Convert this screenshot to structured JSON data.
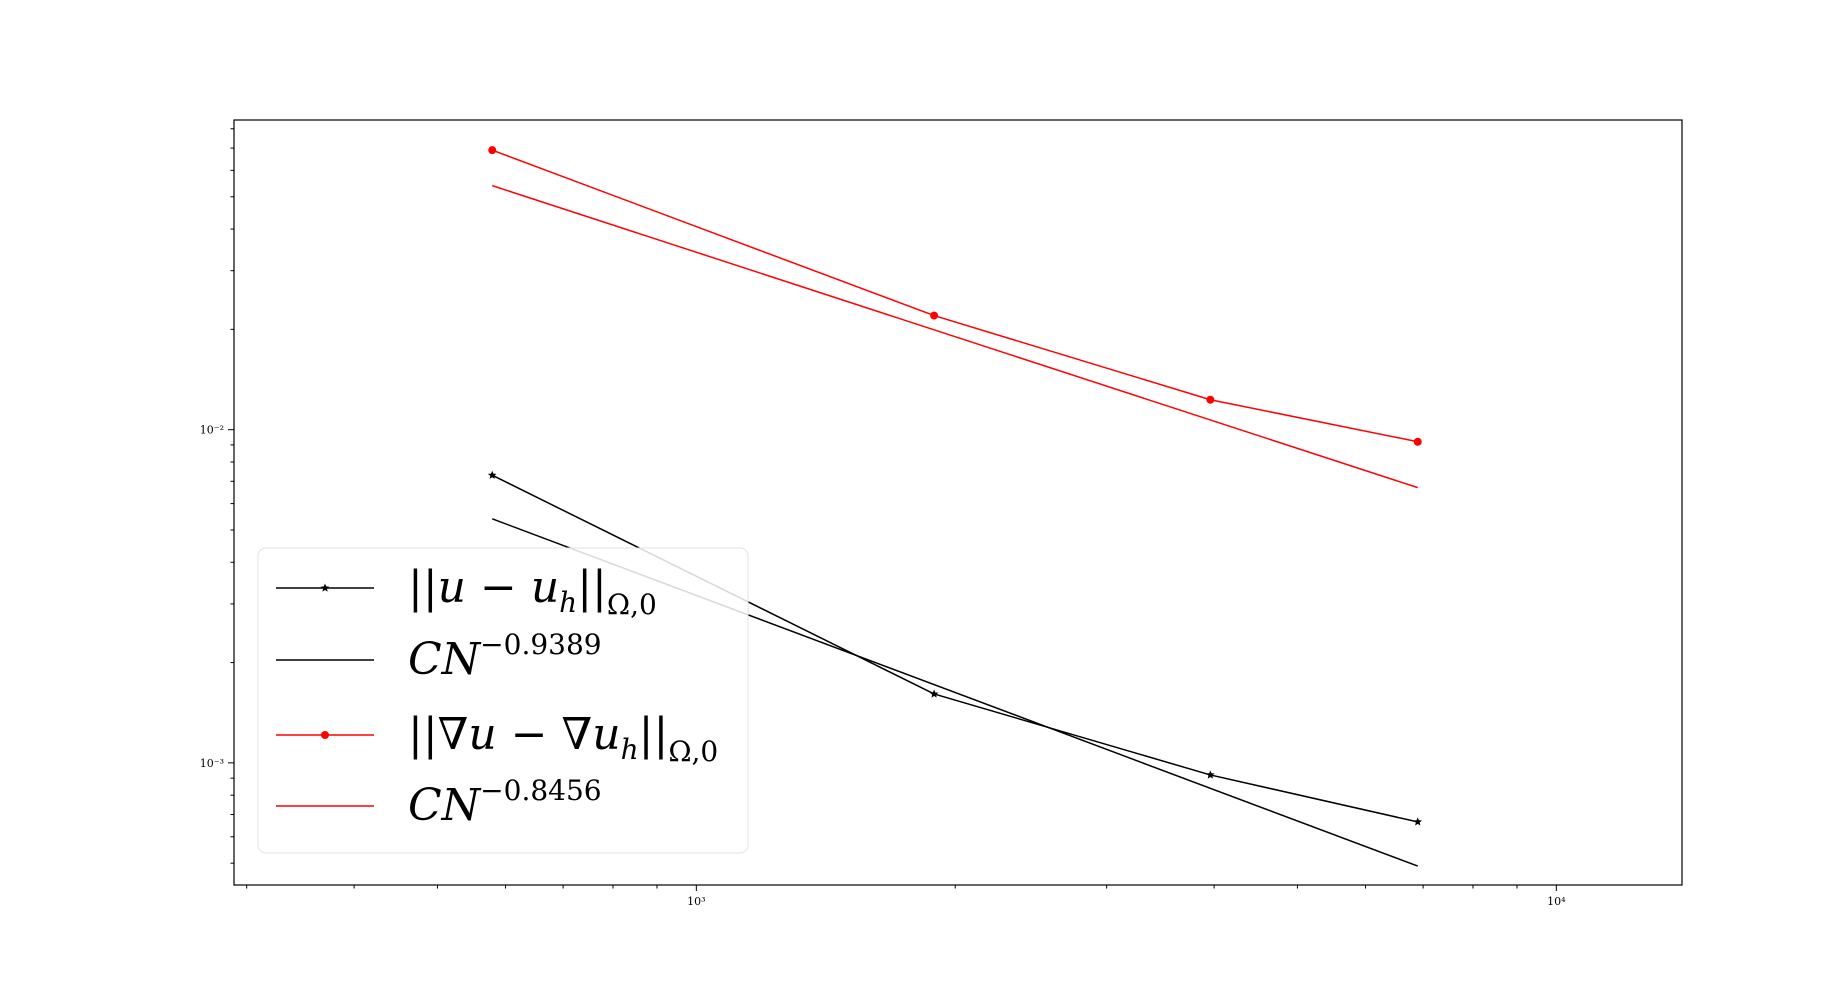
{
  "chart_data": {
    "type": "line",
    "xscale": "log",
    "yscale": "log",
    "xlim": [
      290,
      14000
    ],
    "ylim": [
      0.00043,
      0.085
    ],
    "xticks": [
      {
        "value": 1000,
        "label": "10³"
      },
      {
        "value": 10000,
        "label": "10⁴"
      }
    ],
    "yticks": [
      {
        "value": 0.01,
        "label": "10⁻²"
      },
      {
        "value": 0.001,
        "label": "10⁻³"
      }
    ],
    "grid": false,
    "legend_position": "lower-left",
    "series": [
      {
        "name": "||u − u_h||_{Ω,0}",
        "legend_main": "||u − u",
        "legend_sub": "h",
        "legend_tail": "||",
        "legend_tail_sub": "Ω,0",
        "color": "#000000",
        "marker": "star",
        "x": [
          579,
          1890,
          3960,
          6900
        ],
        "y": [
          0.0073,
          0.00161,
          0.00092,
          0.000665
        ]
      },
      {
        "name": "CN^{-0.9389}",
        "legend_main": "CN",
        "legend_sup": "−0.9389",
        "color": "#000000",
        "marker": "none",
        "x": [
          579,
          6900
        ],
        "y": [
          0.0054,
          0.00049
        ]
      },
      {
        "name": "||∇u − ∇u_h||_{Ω,0}",
        "legend_main": "||∇u − ∇u",
        "legend_sub": "h",
        "legend_tail": "||",
        "legend_tail_sub": "Ω,0",
        "color": "#ff0000",
        "marker": "circle",
        "x": [
          579,
          1890,
          3960,
          6900
        ],
        "y": [
          0.069,
          0.022,
          0.0123,
          0.0092
        ]
      },
      {
        "name": "CN^{-0.8456}",
        "legend_main": "CN",
        "legend_sup": "−0.8456",
        "color": "#ff0000",
        "marker": "none",
        "x": [
          579,
          6900
        ],
        "y": [
          0.054,
          0.0067
        ]
      }
    ]
  }
}
